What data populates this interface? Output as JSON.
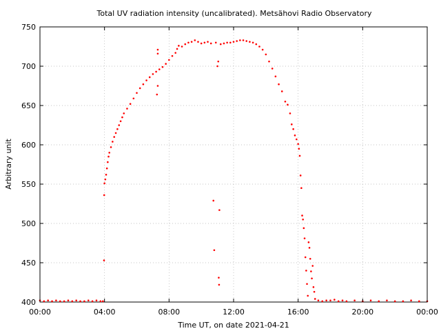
{
  "chart_data": {
    "type": "scatter",
    "title": "Total UV radiation intensity (uncalibrated). Metsähovi Radio Observatory",
    "xlabel": "Time UT, on date 2021-04-21",
    "ylabel": "Arbitrary unit",
    "x_unit": "hours",
    "xlim": [
      0,
      24
    ],
    "ylim": [
      400,
      750
    ],
    "x_ticks": [
      0,
      4,
      8,
      12,
      16,
      20,
      24
    ],
    "x_tick_labels": [
      "00:00",
      "04:00",
      "08:00",
      "12:00",
      "16:00",
      "20:00",
      "00:00"
    ],
    "y_ticks": [
      400,
      450,
      500,
      550,
      600,
      650,
      700,
      750
    ],
    "y_tick_labels": [
      "400",
      "450",
      "500",
      "550",
      "600",
      "650",
      "700",
      "750"
    ],
    "grid": true,
    "marker_color": "#ff0000",
    "series": [
      {
        "name": "",
        "points": [
          [
            0.0,
            402
          ],
          [
            0.25,
            401
          ],
          [
            0.5,
            402
          ],
          [
            0.75,
            401
          ],
          [
            1.0,
            402
          ],
          [
            1.25,
            401
          ],
          [
            1.5,
            401
          ],
          [
            1.75,
            402
          ],
          [
            2.0,
            401
          ],
          [
            2.25,
            402
          ],
          [
            2.5,
            401
          ],
          [
            2.75,
            401
          ],
          [
            3.0,
            402
          ],
          [
            3.25,
            401
          ],
          [
            3.5,
            402
          ],
          [
            3.75,
            401
          ],
          [
            3.9,
            401
          ],
          [
            3.97,
            453
          ],
          [
            3.98,
            536
          ],
          [
            4.0,
            551
          ],
          [
            4.05,
            556
          ],
          [
            4.1,
            562
          ],
          [
            4.15,
            570
          ],
          [
            4.2,
            578
          ],
          [
            4.25,
            585
          ],
          [
            4.3,
            590
          ],
          [
            4.4,
            597
          ],
          [
            4.5,
            604
          ],
          [
            4.6,
            610
          ],
          [
            4.7,
            615
          ],
          [
            4.8,
            620
          ],
          [
            4.9,
            625
          ],
          [
            5.0,
            630
          ],
          [
            5.1,
            635
          ],
          [
            5.2,
            640
          ],
          [
            5.4,
            646
          ],
          [
            5.6,
            652
          ],
          [
            5.8,
            659
          ],
          [
            6.0,
            666
          ],
          [
            6.2,
            672
          ],
          [
            6.4,
            677
          ],
          [
            6.6,
            682
          ],
          [
            6.8,
            686
          ],
          [
            7.0,
            690
          ],
          [
            7.2,
            693
          ],
          [
            7.25,
            664
          ],
          [
            7.3,
            675
          ],
          [
            7.3,
            716
          ],
          [
            7.3,
            721
          ],
          [
            7.4,
            696
          ],
          [
            7.6,
            699
          ],
          [
            7.8,
            703
          ],
          [
            8.0,
            708
          ],
          [
            8.2,
            713
          ],
          [
            8.4,
            717
          ],
          [
            8.5,
            722
          ],
          [
            8.6,
            726
          ],
          [
            8.8,
            725
          ],
          [
            9.0,
            728
          ],
          [
            9.2,
            730
          ],
          [
            9.4,
            731
          ],
          [
            9.6,
            733
          ],
          [
            9.8,
            731
          ],
          [
            10.0,
            729
          ],
          [
            10.2,
            730
          ],
          [
            10.4,
            731
          ],
          [
            10.6,
            729
          ],
          [
            10.75,
            529
          ],
          [
            10.8,
            466
          ],
          [
            10.9,
            730
          ],
          [
            11.0,
            700
          ],
          [
            11.05,
            706
          ],
          [
            11.08,
            431
          ],
          [
            11.1,
            422
          ],
          [
            11.12,
            517
          ],
          [
            11.2,
            728
          ],
          [
            11.4,
            729
          ],
          [
            11.6,
            730
          ],
          [
            11.8,
            730
          ],
          [
            12.0,
            731
          ],
          [
            12.2,
            732
          ],
          [
            12.4,
            733
          ],
          [
            12.6,
            733
          ],
          [
            12.8,
            732
          ],
          [
            13.0,
            731
          ],
          [
            13.2,
            730
          ],
          [
            13.4,
            728
          ],
          [
            13.6,
            725
          ],
          [
            13.8,
            721
          ],
          [
            14.0,
            715
          ],
          [
            14.2,
            706
          ],
          [
            14.4,
            697
          ],
          [
            14.6,
            687
          ],
          [
            14.8,
            677
          ],
          [
            15.0,
            668
          ],
          [
            15.2,
            655
          ],
          [
            15.35,
            651
          ],
          [
            15.5,
            640
          ],
          [
            15.6,
            626
          ],
          [
            15.7,
            620
          ],
          [
            15.8,
            612
          ],
          [
            15.9,
            607
          ],
          [
            16.0,
            601
          ],
          [
            16.05,
            595
          ],
          [
            16.1,
            586
          ],
          [
            16.15,
            561
          ],
          [
            16.2,
            545
          ],
          [
            16.25,
            510
          ],
          [
            16.3,
            505
          ],
          [
            16.35,
            494
          ],
          [
            16.4,
            481
          ],
          [
            16.45,
            457
          ],
          [
            16.5,
            440
          ],
          [
            16.55,
            423
          ],
          [
            16.6,
            408
          ],
          [
            16.65,
            476
          ],
          [
            16.7,
            469
          ],
          [
            16.75,
            455
          ],
          [
            16.8,
            439
          ],
          [
            16.85,
            430
          ],
          [
            16.9,
            446
          ],
          [
            16.95,
            419
          ],
          [
            17.0,
            413
          ],
          [
            17.05,
            404
          ],
          [
            17.25,
            402
          ],
          [
            17.5,
            401
          ],
          [
            17.75,
            402
          ],
          [
            18.0,
            402
          ],
          [
            18.25,
            403
          ],
          [
            18.5,
            401
          ],
          [
            18.75,
            402
          ],
          [
            19.0,
            401
          ],
          [
            19.5,
            402
          ],
          [
            20.0,
            401
          ],
          [
            20.5,
            402
          ],
          [
            21.0,
            401
          ],
          [
            21.5,
            402
          ],
          [
            22.0,
            401
          ],
          [
            22.5,
            401
          ],
          [
            23.0,
            402
          ],
          [
            23.5,
            401
          ],
          [
            24.0,
            401
          ]
        ]
      }
    ]
  }
}
